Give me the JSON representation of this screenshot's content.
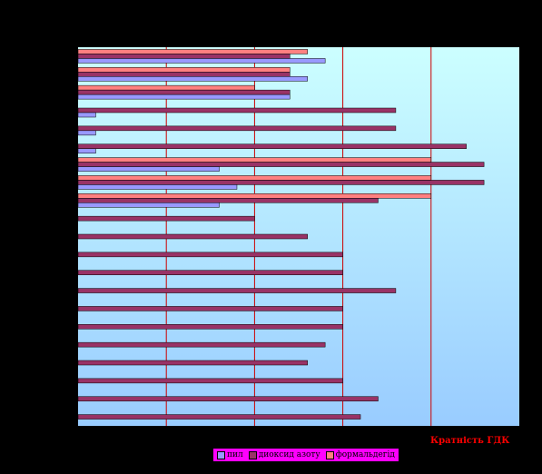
{
  "chart_data": {
    "type": "bar",
    "orientation": "horizontal",
    "xlim": [
      0,
      25
    ],
    "grid": "vertical",
    "legend_position": "bottom-center",
    "series": [
      {
        "name": "пил",
        "color": "#9999ff",
        "values": [
          14,
          13,
          12,
          1,
          1,
          1,
          8,
          9,
          8,
          0,
          0,
          0,
          0,
          0,
          0,
          0,
          0,
          0,
          0,
          0,
          0
        ]
      },
      {
        "name": "диоксид азоту",
        "color": "#993366",
        "values": [
          12,
          12,
          12,
          18,
          18,
          22,
          23,
          23,
          17,
          10,
          13,
          15,
          15,
          18,
          15,
          15,
          14,
          13,
          15,
          17,
          16
        ]
      },
      {
        "name": "формальдегід",
        "color": "#ff8080",
        "values": [
          13,
          12,
          10,
          0,
          0,
          0,
          20,
          20,
          20,
          0,
          0,
          0,
          0,
          0,
          0,
          0,
          0,
          0,
          0,
          0,
          0
        ]
      }
    ],
    "annotation": "Кратність ГДК"
  }
}
